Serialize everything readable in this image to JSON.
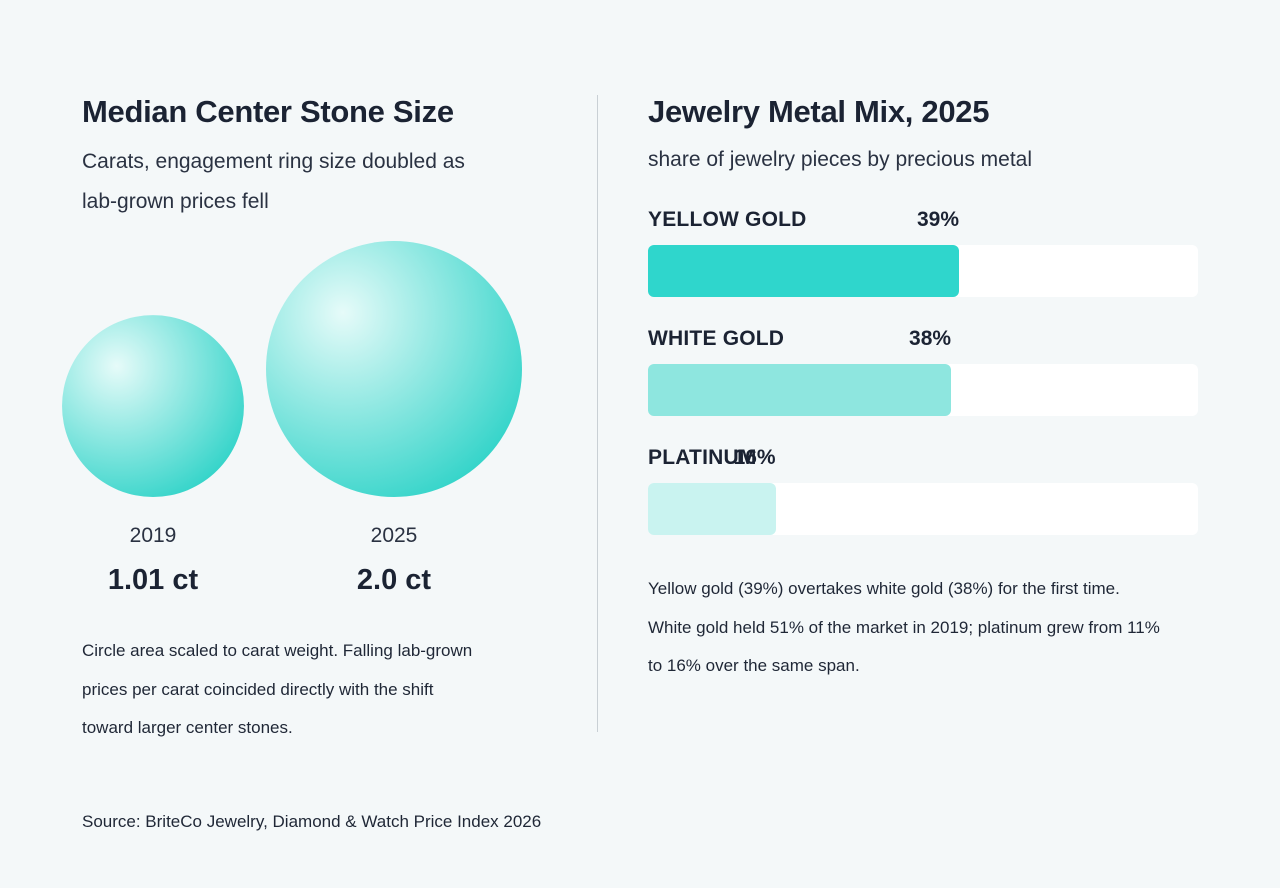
{
  "left": {
    "title": "Median Center Stone Size",
    "subtitle_line1": "Carats, engagement ring size doubled as",
    "subtitle_line2": "lab-grown prices fell",
    "note_line1": "Circle area scaled to carat weight. Falling lab-grown",
    "note_line2": "prices per carat coincided directly with the shift",
    "note_line3": "toward larger center stones."
  },
  "right": {
    "title": "Jewelry Metal Mix, 2025",
    "subtitle": "share of jewelry pieces by precious metal",
    "note_line1": "Yellow gold (39%) overtakes white gold (38%) for the first time.",
    "note_line2": "White gold held 51% of the market in 2019; platinum grew from 11%",
    "note_line3": "to 16% over the same span."
  },
  "source": "Source: BriteCo Jewelry, Diamond & Watch Price Index 2026",
  "colors": {
    "stone_dark": "#2fd3c8",
    "stone_light": "#e6fbf9",
    "bar_yellow_gold": "#2fd6cc",
    "bar_white_gold": "#8ee6df",
    "bar_platinum": "#c9f3f0"
  },
  "chart_data": [
    {
      "type": "bubble",
      "title": "Median Center Stone Size",
      "subtitle": "Carats, engagement ring size doubled as lab-grown prices fell",
      "categories": [
        "2019",
        "2025"
      ],
      "values": [
        1.01,
        2.0
      ],
      "value_labels": [
        "1.01 ct",
        "2.0 ct"
      ],
      "unit": "ct",
      "encoding": "circle area scaled to carat weight"
    },
    {
      "type": "bar",
      "orientation": "horizontal",
      "title": "Jewelry Metal Mix, 2025",
      "subtitle": "share of jewelry pieces by precious metal",
      "categories": [
        "YELLOW GOLD",
        "WHITE GOLD",
        "PLATINUM"
      ],
      "values": [
        39,
        38,
        16
      ],
      "value_labels": [
        "39%",
        "38%",
        "16%"
      ],
      "unit": "%"
    }
  ]
}
